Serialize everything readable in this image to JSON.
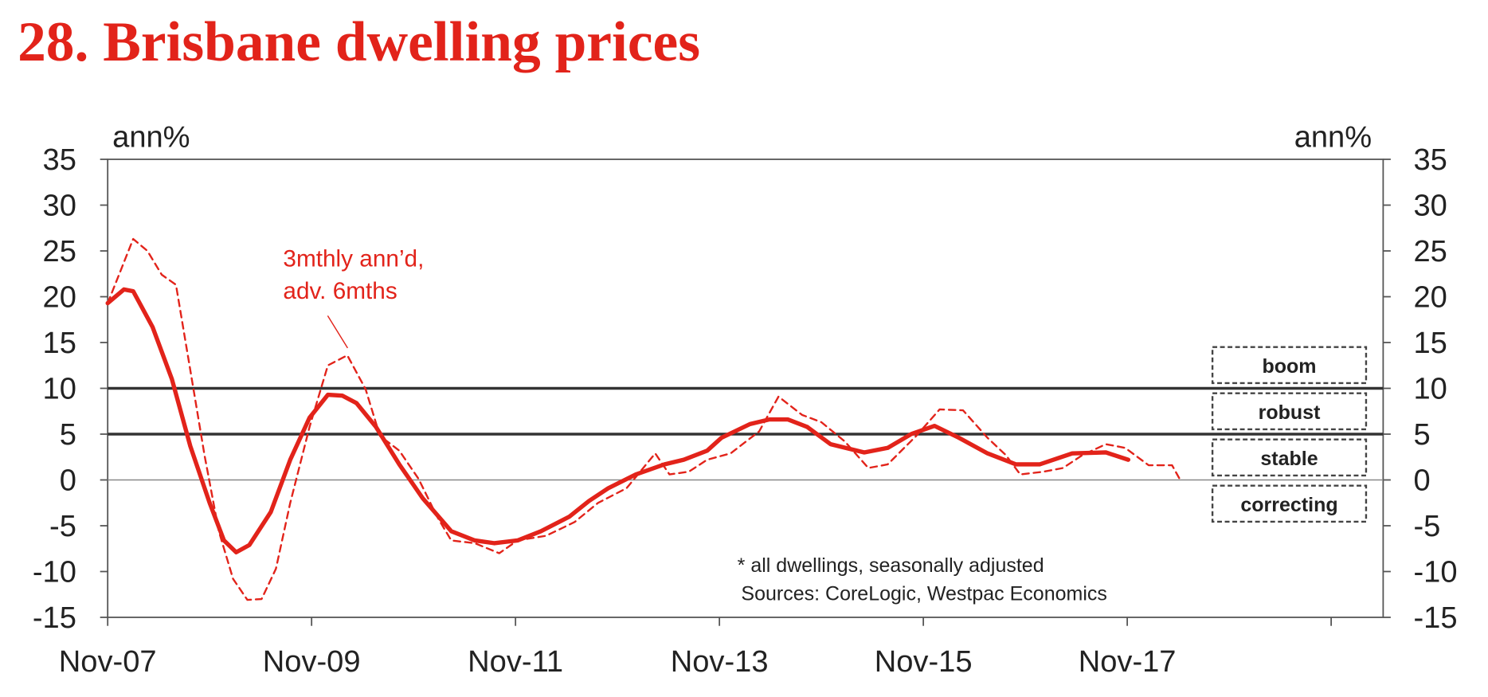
{
  "chart_data": {
    "type": "line",
    "title": "28. Brisbane dwelling prices",
    "y_label": "ann%",
    "y2_label": "ann%",
    "xlim": [
      2007.83,
      2020.34
    ],
    "xticks": [
      {
        "value": 2007.83,
        "label": "Nov-07"
      },
      {
        "value": 2009.83,
        "label": "Nov-09"
      },
      {
        "value": 2011.83,
        "label": "Nov-11"
      },
      {
        "value": 2013.83,
        "label": "Nov-13"
      },
      {
        "value": 2015.83,
        "label": "Nov-15"
      },
      {
        "value": 2017.83,
        "label": "Nov-17"
      },
      {
        "value": 2019.83,
        "label": null
      }
    ],
    "ylim": [
      -15,
      35
    ],
    "yticks": [
      -15,
      -10,
      -5,
      0,
      5,
      10,
      15,
      20,
      25,
      30,
      35
    ],
    "y2lim": [
      -15,
      35
    ],
    "y2ticks": [
      -15,
      -10,
      -5,
      0,
      5,
      10,
      15,
      20,
      25,
      30,
      35
    ],
    "reference_lines": [
      10,
      5
    ],
    "zones": [
      "boom",
      "robust",
      "stable",
      "correcting"
    ],
    "annotation": [
      "3mthly ann’d,",
      "adv. 6mths"
    ],
    "notes": [
      "* all dwellings, seasonally adjusted",
      "Sources: CoreLogic, Westpac Economics"
    ],
    "series": [
      {
        "color": "#e2231a",
        "dash": false,
        "x": [
          2007.83,
          2007.99,
          2008.08,
          2008.27,
          2008.46,
          2008.64,
          2008.83,
          2008.97,
          2009.09,
          2009.22,
          2009.43,
          2009.62,
          2009.81,
          2009.99,
          2010.13,
          2010.27,
          2010.46,
          2010.69,
          2010.92,
          2011.2,
          2011.43,
          2011.62,
          2011.85,
          2012.08,
          2012.36,
          2012.55,
          2012.74,
          2013.01,
          2013.29,
          2013.48,
          2013.71,
          2013.85,
          2014.13,
          2014.32,
          2014.5,
          2014.69,
          2014.92,
          2015.25,
          2015.48,
          2015.71,
          2015.94,
          2016.18,
          2016.46,
          2016.74,
          2016.97,
          2017.29,
          2017.62,
          2017.84
        ],
        "values": [
          19.3,
          20.8,
          20.6,
          16.7,
          11,
          3.7,
          -2.5,
          -6.6,
          -7.9,
          -7.1,
          -3.5,
          2.2,
          6.8,
          9.3,
          9.2,
          8.4,
          5.8,
          1.7,
          -2,
          -5.6,
          -6.6,
          -6.9,
          -6.6,
          -5.6,
          -4,
          -2.3,
          -0.9,
          0.6,
          1.7,
          2.2,
          3.2,
          4.6,
          6.1,
          6.6,
          6.6,
          5.8,
          3.9,
          3,
          3.5,
          5,
          5.9,
          4.6,
          2.9,
          1.7,
          1.7,
          2.9,
          3,
          2.2
        ]
      },
      {
        "color": "#e2231a",
        "dash": true,
        "x": [
          2007.83,
          2008.08,
          2008.22,
          2008.36,
          2008.5,
          2008.64,
          2008.78,
          2008.92,
          2009.06,
          2009.2,
          2009.34,
          2009.48,
          2009.62,
          2009.81,
          2009.99,
          2010.18,
          2010.36,
          2010.5,
          2010.69,
          2010.88,
          2011.06,
          2011.2,
          2011.43,
          2011.67,
          2011.85,
          2012.13,
          2012.41,
          2012.64,
          2012.92,
          2013.2,
          2013.34,
          2013.53,
          2013.71,
          2013.94,
          2014.22,
          2014.41,
          2014.64,
          2014.83,
          2015.06,
          2015.29,
          2015.48,
          2015.76,
          2015.99,
          2016.22,
          2016.46,
          2016.64,
          2016.78,
          2017.01,
          2017.2,
          2017.39,
          2017.62,
          2017.81,
          2018.04,
          2018.27,
          2018.35
        ],
        "values": [
          19.3,
          26.3,
          25,
          22.4,
          21.3,
          12,
          2.7,
          -5.6,
          -10.8,
          -13.1,
          -13,
          -9.7,
          -2.5,
          5.8,
          12.5,
          13.6,
          9.9,
          4.8,
          3.2,
          0.1,
          -4,
          -6.6,
          -6.9,
          -8,
          -6.6,
          -6.1,
          -4.6,
          -2.5,
          -0.9,
          2.9,
          0.6,
          0.9,
          2.2,
          2.9,
          5.3,
          9.1,
          7.1,
          6.3,
          4.2,
          1.3,
          1.7,
          4.8,
          7.7,
          7.6,
          4.6,
          2.7,
          0.6,
          0.9,
          1.3,
          2.7,
          3.9,
          3.5,
          1.6,
          1.6,
          0
        ]
      }
    ]
  }
}
